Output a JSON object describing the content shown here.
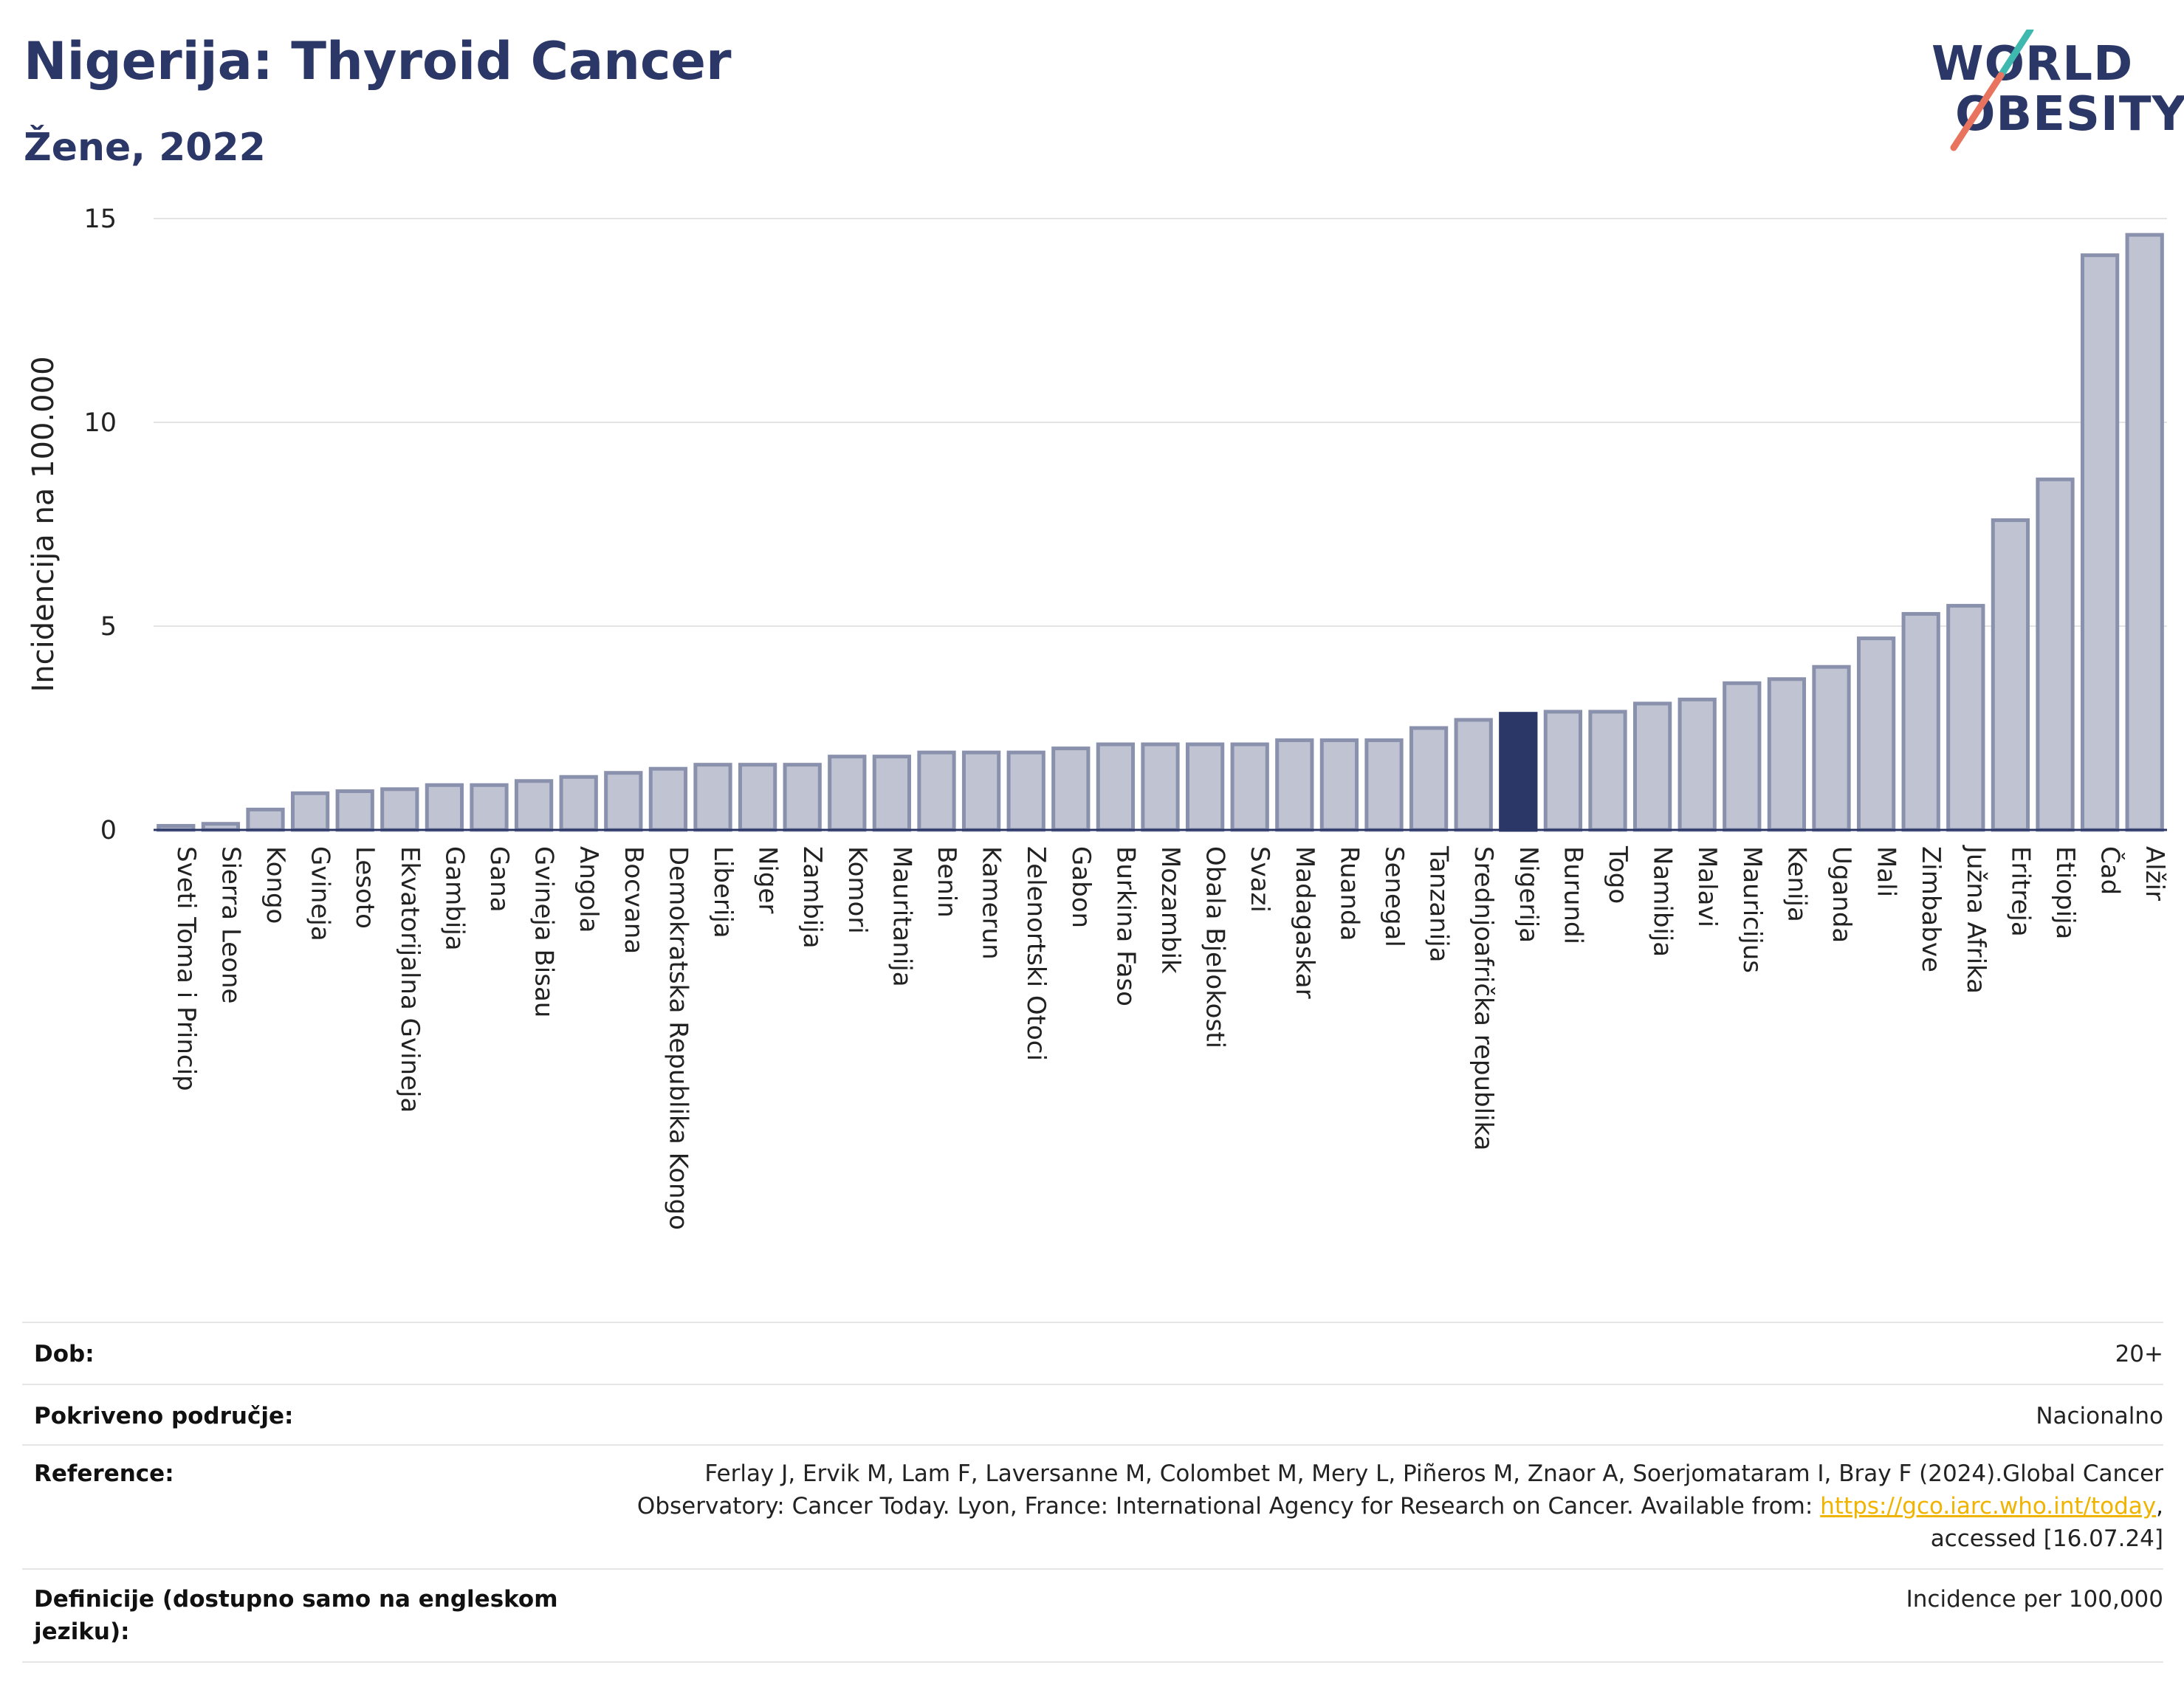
{
  "header": {
    "title": "Nigerija: Thyroid Cancer",
    "subtitle": "Žene, 2022"
  },
  "logo": {
    "line1": "WORLD",
    "line2": "OBESITY"
  },
  "chart_data": {
    "type": "bar",
    "ylabel": "Incidencija na 100.000",
    "xlabel": "",
    "ylim": [
      0,
      15
    ],
    "yticks": [
      0,
      5,
      10,
      15
    ],
    "grid": true,
    "highlight": "Nigerija",
    "colors": {
      "bar": "#bfc3d2",
      "bar_border": "#8a91ad",
      "highlight": "#2b3767"
    },
    "categories": [
      "Sveti Toma i Princip",
      "Sierra Leone",
      "Kongo",
      "Gvineja",
      "Lesoto",
      "Ekvatorijalna Gvineja",
      "Gambija",
      "Gana",
      "Gvineja Bisau",
      "Angola",
      "Bocvana",
      "Demokratska Republika Kongo",
      "Liberija",
      "Niger",
      "Zambija",
      "Komori",
      "Mauritanija",
      "Benin",
      "Kamerun",
      "Zelenortski Otoci",
      "Gabon",
      "Burkina Faso",
      "Mozambik",
      "Obala Bjelokosti",
      "Svazi",
      "Madagaskar",
      "Ruanda",
      "Senegal",
      "Tanzanija",
      "Srednjoafrička republika",
      "Nigerija",
      "Burundi",
      "Togo",
      "Namibija",
      "Malavi",
      "Mauricijus",
      "Kenija",
      "Uganda",
      "Mali",
      "Zimbabve",
      "Južna Afrika",
      "Eritreja",
      "Etiopija",
      "Čad",
      "Alžir"
    ],
    "values": [
      0.1,
      0.15,
      0.5,
      0.9,
      0.95,
      1.0,
      1.1,
      1.1,
      1.2,
      1.3,
      1.4,
      1.5,
      1.6,
      1.6,
      1.6,
      1.8,
      1.8,
      1.9,
      1.9,
      1.9,
      2.0,
      2.1,
      2.1,
      2.1,
      2.1,
      2.2,
      2.2,
      2.2,
      2.5,
      2.7,
      2.85,
      2.9,
      2.9,
      3.1,
      3.2,
      3.6,
      3.7,
      4.0,
      4.7,
      5.3,
      5.5,
      7.6,
      8.6,
      14.1,
      14.6
    ]
  },
  "meta": {
    "age_label": "Dob:",
    "age_value": "20+",
    "coverage_label": "Pokriveno područje:",
    "coverage_value": "Nacionalno",
    "reference_label": "Reference:",
    "reference_line1": "Ferlay J, Ervik M, Lam F, Laversanne M, Colombet M, Mery L, Piñeros M, Znaor A, Soerjomataram I, Bray F (2024).Global Cancer",
    "reference_line2": "Observatory: Cancer Today. Lyon, France: International Agency for Research on Cancer. Available from: ",
    "reference_link": "https://gco.iarc.who.int/today",
    "reference_line2_end": ",",
    "reference_line3": "accessed [16.07.24]",
    "definitions_label": "Definicije (dostupno samo na engleskom jeziku):",
    "definitions_value": "Incidence per 100,000"
  }
}
